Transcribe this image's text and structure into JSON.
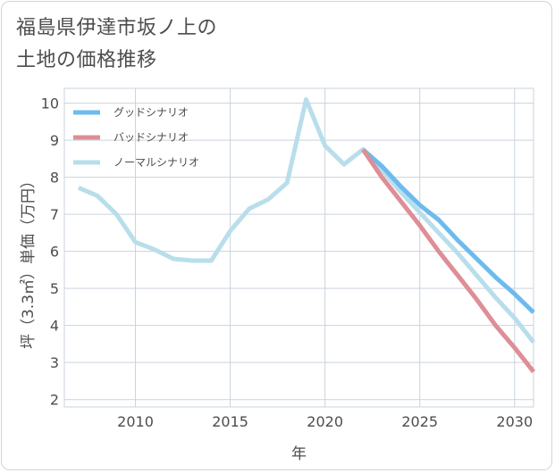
{
  "title_line1": "福島県伊達市坂ノ上の",
  "title_line2": "土地の価格推移",
  "chart_data": {
    "type": "line",
    "xlabel": "年",
    "ylabel": "坪（3.3㎡）単価（万円）",
    "xlim": [
      2006.25,
      2031
    ],
    "ylim": [
      1.8,
      10.4
    ],
    "xticks": [
      2010,
      2015,
      2020,
      2025,
      2030
    ],
    "yticks": [
      2,
      3,
      4,
      5,
      6,
      7,
      8,
      9,
      10
    ],
    "grid": true,
    "legend_position": "top-left",
    "series": [
      {
        "name": "グッドシナリオ",
        "color": "#6dbbee",
        "x": [
          2022,
          2023,
          2024,
          2025,
          2026,
          2027,
          2028,
          2029,
          2030,
          2031
        ],
        "y": [
          8.75,
          8.3,
          7.75,
          7.25,
          6.85,
          6.3,
          5.8,
          5.3,
          4.85,
          4.35
        ]
      },
      {
        "name": "バッドシナリオ",
        "color": "#de8e96",
        "x": [
          2022,
          2023,
          2024,
          2025,
          2026,
          2027,
          2028,
          2029,
          2030,
          2031
        ],
        "y": [
          8.75,
          8.0,
          7.35,
          6.7,
          6.0,
          5.35,
          4.7,
          4.0,
          3.4,
          2.75
        ]
      },
      {
        "name": "ノーマルシナリオ",
        "color": "#b9deeb",
        "x": [
          2007,
          2008,
          2009,
          2010,
          2011,
          2012,
          2013,
          2014,
          2015,
          2016,
          2017,
          2018,
          2019,
          2020,
          2021,
          2022,
          2023,
          2024,
          2025,
          2026,
          2027,
          2028,
          2029,
          2030,
          2031
        ],
        "y": [
          7.72,
          7.5,
          7.0,
          6.25,
          6.05,
          5.8,
          5.75,
          5.75,
          6.55,
          7.15,
          7.4,
          7.85,
          10.1,
          8.85,
          8.35,
          8.75,
          8.2,
          7.6,
          7.05,
          6.5,
          5.95,
          5.35,
          4.75,
          4.2,
          3.55
        ]
      }
    ]
  }
}
